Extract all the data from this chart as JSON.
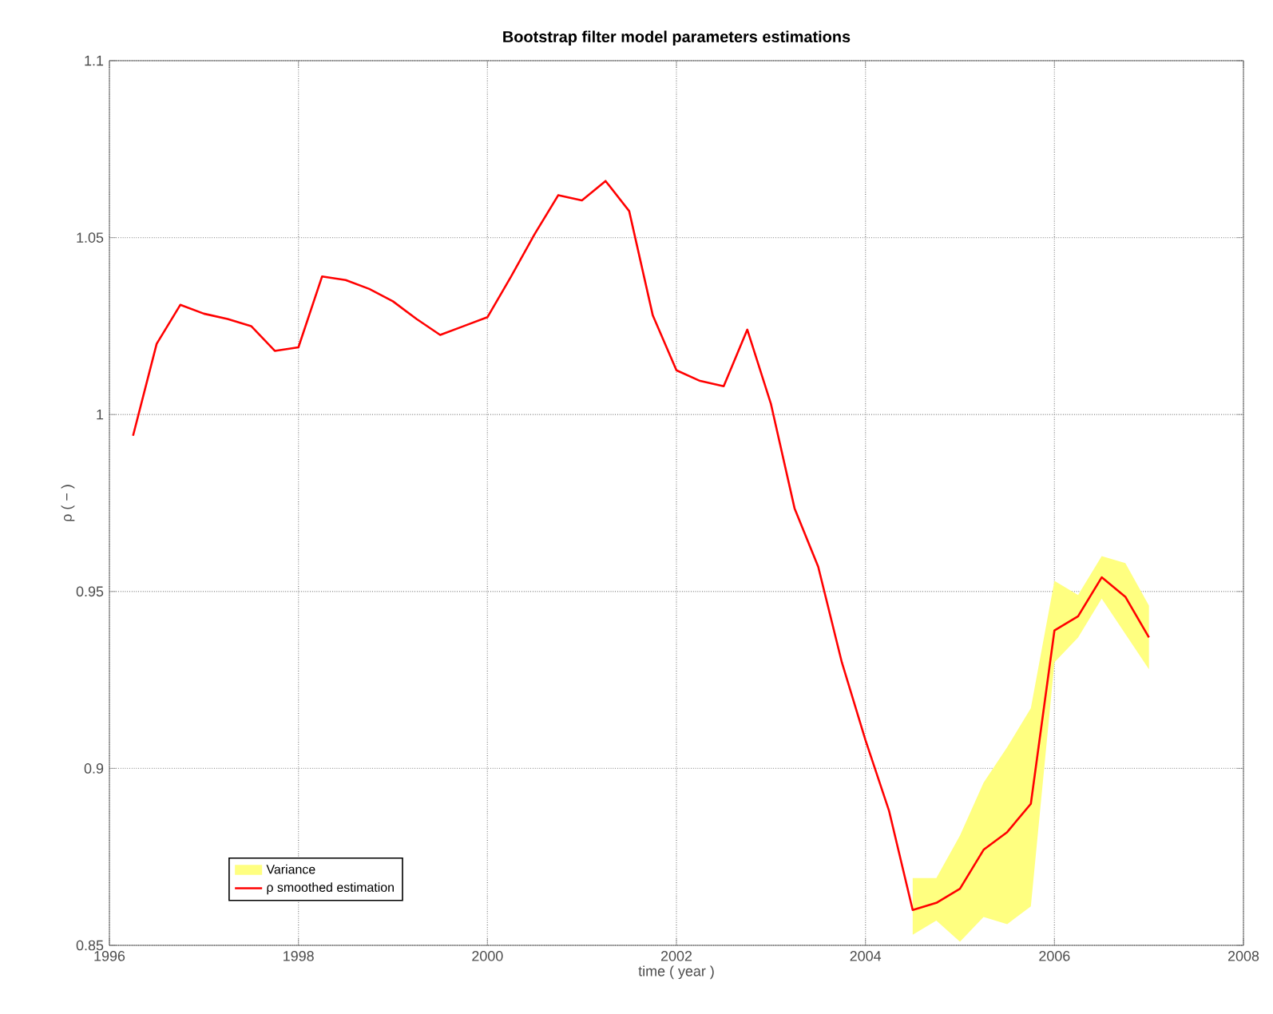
{
  "chart_data": {
    "type": "line",
    "title": "Bootstrap filter model parameters estimations",
    "xlabel": "time ( year )",
    "ylabel": "ρ ( − )",
    "annotations": [
      "Variance"
    ],
    "x": [
      1996.25,
      1996.5,
      1996.75,
      1997,
      1997.25,
      1997.5,
      1997.75,
      1998,
      1998.25,
      1998.5,
      1998.75,
      1999,
      1999.25,
      1999.5,
      1999.75,
      2000,
      2000.25,
      2000.5,
      2000.75,
      2001,
      2001.25,
      2001.5,
      2001.75,
      2002,
      2002.25,
      2002.5,
      2002.75,
      2003,
      2003.25,
      2003.5,
      2003.75,
      2004,
      2004.25,
      2004.5,
      2004.75,
      2005,
      2005.25,
      2005.5,
      2005.75,
      2006,
      2006.25,
      2006.5,
      2006.75,
      2007
    ],
    "series": [
      {
        "name": "ρ smoothed estimation",
        "color": "#ff0000",
        "values": [
          0.994,
          1.02,
          1.031,
          1.0285,
          1.027,
          1.025,
          1.018,
          1.019,
          1.039,
          1.038,
          1.0355,
          1.032,
          1.027,
          1.0225,
          1.025,
          1.0275,
          1.039,
          1.051,
          1.062,
          1.0605,
          1.066,
          1.0575,
          1.028,
          1.0125,
          1.0095,
          1.008,
          1.024,
          1.003,
          0.9735,
          0.957,
          0.93,
          0.908,
          0.888,
          0.86,
          0.862,
          0.866,
          0.877,
          0.882,
          0.89,
          0.939,
          0.943,
          0.954,
          0.9485,
          0.937
        ],
        "upper": [
          null,
          null,
          null,
          null,
          null,
          null,
          null,
          null,
          null,
          null,
          null,
          null,
          null,
          null,
          null,
          null,
          null,
          null,
          null,
          null,
          null,
          null,
          null,
          null,
          null,
          null,
          null,
          null,
          null,
          null,
          null,
          null,
          null,
          0.869,
          0.869,
          0.881,
          0.896,
          0.906,
          0.917,
          0.953,
          0.949,
          0.96,
          0.958,
          0.946
        ],
        "lower": [
          null,
          null,
          null,
          null,
          null,
          null,
          null,
          null,
          null,
          null,
          null,
          null,
          null,
          null,
          null,
          null,
          null,
          null,
          null,
          null,
          null,
          null,
          null,
          null,
          null,
          null,
          null,
          null,
          null,
          null,
          null,
          null,
          null,
          0.853,
          0.857,
          0.851,
          0.858,
          0.856,
          0.861,
          0.93,
          0.937,
          0.948,
          0.938,
          0.928
        ]
      }
    ],
    "xlim": [
      1996,
      2008
    ],
    "ylim": [
      0.85,
      1.1
    ],
    "xticks": [
      1996,
      1998,
      2000,
      2002,
      2004,
      2006,
      2008
    ],
    "yticks": [
      0.85,
      0.9,
      0.95,
      1,
      1.05,
      1.1
    ],
    "grid": true,
    "legend": "bottom left"
  }
}
